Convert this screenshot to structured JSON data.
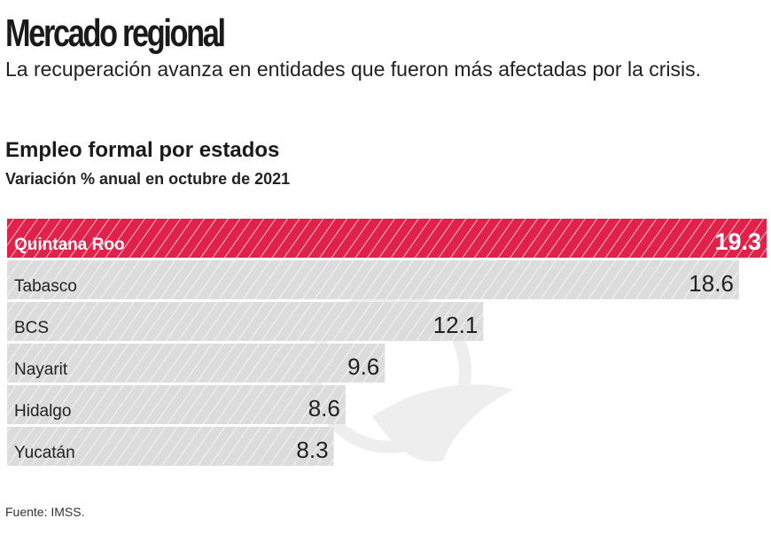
{
  "header": {
    "title": "Mercado regional",
    "subtitle": "La recuperación avanza en entidades que fueron más afectadas por la crisis."
  },
  "chart_data": {
    "type": "bar",
    "orientation": "horizontal",
    "title": "Empleo formal por estados",
    "subtitle": "Variación % anual en octubre de 2021",
    "categories": [
      "Quintana Roo",
      "Tabasco",
      "BCS",
      "Nayarit",
      "Hidalgo",
      "Yucatán"
    ],
    "values": [
      19.3,
      18.6,
      12.1,
      9.6,
      8.6,
      8.3
    ],
    "value_labels": [
      "19.3",
      "18.6",
      "12.1",
      "9.6",
      "8.6",
      "8.3"
    ],
    "xlim": [
      0,
      19.3
    ],
    "grid": false,
    "highlight_index": 0,
    "colors": {
      "highlight": "#e0224a",
      "default": "#dcdcdc",
      "hatch": "#ffffff"
    }
  },
  "footer": {
    "source": "Fuente: IMSS."
  }
}
